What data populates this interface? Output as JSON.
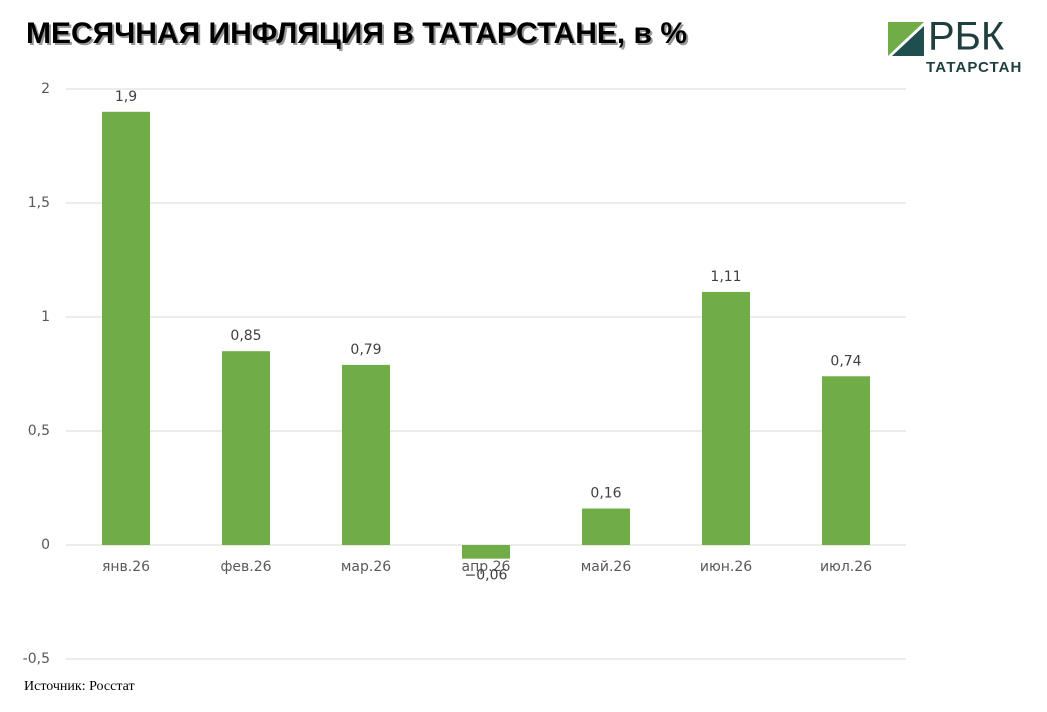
{
  "chart_data": {
    "type": "bar",
    "title": "МЕСЯЧНАЯ ИНФЛЯЦИЯ В ТАТАРСТАНЕ, в %",
    "categories": [
      "янв.26",
      "фев.26",
      "мар.26",
      "апр.26",
      "май.26",
      "июн.26",
      "июл.26"
    ],
    "values": [
      1.9,
      0.85,
      0.79,
      -0.06,
      0.16,
      1.11,
      0.74
    ],
    "value_labels": [
      "1,9",
      "0,85",
      "0,79",
      "−0,06",
      "0,16",
      "1,11",
      "0,74"
    ],
    "color": "#70ad47",
    "ylim": [
      -0.5,
      2
    ],
    "yticks": [
      {
        "value": -0.5,
        "label": "-0,5"
      },
      0,
      {
        "value": 0.5,
        "label": "0,5"
      },
      1,
      {
        "value": 1.5,
        "label": "1,5"
      },
      2
    ],
    "grid": true,
    "source": "Источник: Росстат"
  },
  "logo": {
    "name": "РБК",
    "region": "ТАТАРСТАН"
  }
}
